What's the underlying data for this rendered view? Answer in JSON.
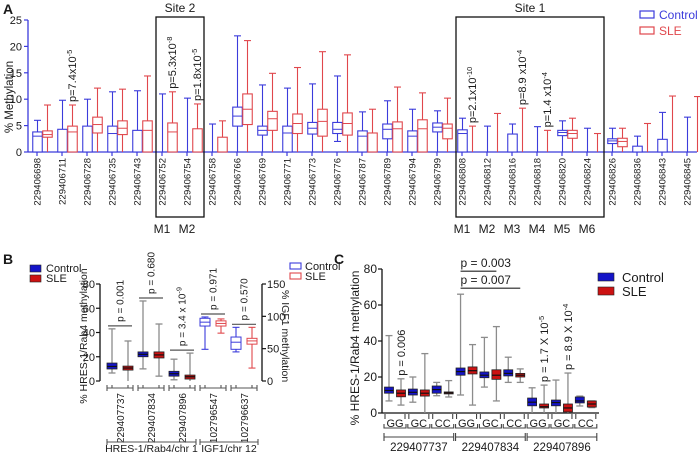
{
  "colors": {
    "control_outline": "#3b3bdb",
    "sle_outline": "#e0474c",
    "control_fill": "#1414c8",
    "sle_fill": "#cc1212",
    "whisker_gray": "#8c8c8c",
    "axis_a": "#3b3bdb",
    "text": "#1a1a1a"
  },
  "chart_data": [
    {
      "panel": "A",
      "type": "boxplot",
      "title": "",
      "xlabel": "",
      "ylabel": "% Methylation",
      "ylim": [
        0,
        25
      ],
      "yticks": [
        "0",
        "5",
        "10",
        "15",
        "20",
        "25"
      ],
      "ytick_values": [
        0,
        5,
        10,
        15,
        20,
        25
      ],
      "grid": false,
      "legend": "top-right",
      "box_format": "[min, q1, median, q3, max]",
      "categories": [
        "229406698",
        "229406711",
        "229406728",
        "229406735",
        "229406743",
        "229406752",
        "229406754",
        "229406758",
        "229406766",
        "229406769",
        "229406771",
        "229406773",
        "229406776",
        "229406787",
        "229406789",
        "229406794",
        "229406799",
        "229406808",
        "229406812",
        "229406816",
        "229406818",
        "229406820",
        "229406824",
        "229406826",
        "229406836",
        "229406843",
        "229406845"
      ],
      "series": [
        {
          "name": "Control",
          "style": "outline",
          "color_key": "control_outline",
          "boxes": [
            [
              0,
              0,
              3.0,
              3.8,
              6.0
            ],
            [
              0,
              0,
              0,
              4.3,
              9.8
            ],
            [
              0,
              0,
              0,
              4.9,
              10.0
            ],
            [
              0,
              0,
              3.5,
              4.9,
              11.4
            ],
            [
              0,
              0,
              0,
              4.1,
              11.6
            ],
            [
              0,
              0,
              0,
              0,
              11.0
            ],
            [
              0,
              0,
              0,
              0,
              10.2
            ],
            [
              0,
              0,
              0,
              0,
              5.3
            ],
            [
              0,
              4.9,
              6.8,
              8.5,
              22.0
            ],
            [
              0,
              3.2,
              4.1,
              4.9,
              12.7
            ],
            [
              0,
              0,
              3.6,
              4.9,
              12.1
            ],
            [
              0,
              3.4,
              4.5,
              5.6,
              12.9
            ],
            [
              2.0,
              3.5,
              4.3,
              5.6,
              14.4
            ],
            [
              0,
              0,
              3.0,
              4.0,
              7.6
            ],
            [
              0,
              2.5,
              4.3,
              5.3,
              9.7
            ],
            [
              0,
              0,
              3.0,
              4.0,
              8.1
            ],
            [
              0,
              3.8,
              4.7,
              5.5,
              7.8
            ],
            [
              0,
              0,
              3.5,
              4.2,
              6.4
            ],
            [
              0,
              0,
              0,
              0,
              4.9
            ],
            [
              0,
              0,
              0,
              3.4,
              5.3
            ],
            [
              0,
              0,
              0,
              0,
              4.8
            ],
            [
              0,
              3.1,
              3.7,
              4.1,
              5.9
            ],
            [
              0,
              0,
              0,
              0,
              4.5
            ],
            [
              0,
              1.6,
              2.1,
              2.5,
              4.5
            ],
            [
              0,
              0,
              0,
              1.1,
              3.0
            ],
            [
              0,
              0,
              0,
              2.4,
              7.5
            ],
            [
              0,
              0,
              0,
              0,
              6.6
            ]
          ]
        },
        {
          "name": "SLE",
          "style": "outline",
          "color_key": "sle_outline",
          "boxes": [
            [
              0,
              2.8,
              3.3,
              4.0,
              8.9
            ],
            [
              0,
              0,
              3.8,
              4.9,
              8.9
            ],
            [
              0,
              3.6,
              5.2,
              6.6,
              12.1
            ],
            [
              0,
              3.3,
              4.5,
              5.9,
              11.9
            ],
            [
              0,
              0,
              4.1,
              5.9,
              14.4
            ],
            [
              0,
              0,
              3.8,
              5.5,
              11.4
            ],
            [
              0,
              0,
              0,
              4.4,
              9.1
            ],
            [
              0,
              0,
              0,
              2.8,
              5.9
            ],
            [
              0,
              5.2,
              8.1,
              11.0,
              21.1
            ],
            [
              0,
              4.1,
              6.3,
              7.7,
              14.9
            ],
            [
              0,
              3.5,
              5.4,
              7.2,
              16.0
            ],
            [
              0,
              3.0,
              5.8,
              8.1,
              19.0
            ],
            [
              0,
              3.2,
              5.4,
              7.4,
              18.4
            ],
            [
              0,
              0,
              0,
              3.6,
              8.1
            ],
            [
              0,
              0,
              4.4,
              5.7,
              12.3
            ],
            [
              0,
              0,
              4.4,
              6.1,
              11.2
            ],
            [
              0,
              2.5,
              4.5,
              5.3,
              10.2
            ],
            [
              0,
              0,
              0,
              0,
              4.9
            ],
            [
              0,
              0,
              0,
              0,
              7.3
            ],
            [
              0,
              0,
              0,
              0,
              8.3
            ],
            [
              0,
              0,
              0,
              0,
              4.1
            ],
            [
              0,
              2.6,
              3.5,
              4.1,
              6.4
            ],
            [
              0,
              0,
              0,
              0,
              3.5
            ],
            [
              0,
              1.0,
              2.0,
              2.6,
              4.5
            ],
            [
              0,
              0,
              0,
              0,
              5.4
            ],
            [
              0,
              0,
              0,
              0,
              10.6
            ],
            [
              0,
              0,
              0,
              0,
              10.5
            ]
          ]
        }
      ],
      "regions": [
        {
          "label": "Site 2",
          "first": "229406752",
          "last": "229406754",
          "markers": [
            "M1",
            "M2"
          ]
        },
        {
          "label": "Site 1",
          "first": "229406808",
          "last": "229406824",
          "markers": [
            "M1",
            "M2",
            "M3",
            "M4",
            "M5",
            "M6"
          ]
        }
      ],
      "annotations": [
        {
          "category": "229406711",
          "text": "p=7.4x10",
          "exponent": "-5"
        },
        {
          "category": "229406752",
          "text": "p=5.3x10",
          "exponent": "-8"
        },
        {
          "category": "229406754",
          "text": "p=1.8x10",
          "exponent": "-5"
        },
        {
          "category": "229406808",
          "text": "p=2.1x10",
          "exponent": "-10"
        },
        {
          "category": "229406816",
          "text": "p=8.9 x10",
          "exponent": "-4"
        },
        {
          "category": "229406818",
          "text": "p=1.4 x10",
          "exponent": "-4"
        }
      ]
    },
    {
      "panel": "B",
      "type": "boxplot",
      "title": "",
      "xlabel": "",
      "ylabel": "% HRES-1/Rab4 methylation",
      "ylabel_right": "% IGF1 methylation",
      "ylim": [
        0,
        80
      ],
      "ylim_right": [
        0,
        150
      ],
      "yticks": [
        "0",
        "20",
        "40",
        "60",
        "80"
      ],
      "ytick_values": [
        0,
        20,
        40,
        60,
        80
      ],
      "yticks_right": [
        "0",
        "50",
        "100",
        "150"
      ],
      "ytick_values_right": [
        0,
        50,
        100,
        150
      ],
      "grid": false,
      "legend": "top-left (filled, HRES-1/Rab4) and top-right (outline, IGF1)",
      "box_format": "[min, q1, median, q3, max]",
      "categories": [
        "229407737",
        "229407834",
        "229407896",
        "102796547",
        "102796637"
      ],
      "category_axis": [
        "left",
        "left",
        "left",
        "right",
        "right"
      ],
      "groups": [
        {
          "label": "HRES-1/Rab4/chr 1",
          "categories": [
            0,
            1,
            2
          ]
        },
        {
          "label": "IGF1/chr 12",
          "categories": [
            3,
            4
          ]
        }
      ],
      "series": [
        {
          "name": "Control",
          "color_key_fill": "control_fill",
          "color_key_outline": "control_outline",
          "boxes": [
            [
              6.6,
              9.9,
              12.0,
              14.8,
              43
            ],
            [
              10,
              20,
              22,
              24,
              66
            ],
            [
              1,
              4,
              6,
              8,
              18
            ],
            [
              49,
              85,
              91,
              97,
              99
            ],
            [
              45,
              49,
              60,
              68,
              83
            ]
          ]
        },
        {
          "name": "SLE",
          "color_key_fill": "sle_fill",
          "color_key_outline": "sle_outline",
          "boxes": [
            [
              0,
              9.0,
              10.7,
              12.3,
              33
            ],
            [
              4,
              19,
              21.5,
              24,
              47
            ],
            [
              0,
              1.6,
              3.5,
              4.9,
              23
            ],
            [
              74,
              85,
              89,
              93,
              96
            ],
            [
              20,
              57,
              62,
              66,
              83
            ]
          ]
        }
      ],
      "annotations": [
        {
          "category": 0,
          "text": "p = 0.001",
          "exponent": ""
        },
        {
          "category": 1,
          "text": "p = 0.680",
          "exponent": ""
        },
        {
          "category": 2,
          "text": "p = 3.4 x 10",
          "exponent": "-9"
        },
        {
          "category": 3,
          "text": "p = 0.971",
          "exponent": ""
        },
        {
          "category": 4,
          "text": "p = 0.570",
          "exponent": ""
        }
      ]
    },
    {
      "panel": "C",
      "type": "boxplot",
      "title": "",
      "xlabel": "",
      "ylabel": "% HRES-1/Rab4 methylation",
      "ylim": [
        0,
        80
      ],
      "yticks": [
        "0",
        "20",
        "40",
        "60",
        "80"
      ],
      "ytick_values": [
        0,
        20,
        40,
        60,
        80
      ],
      "grid": false,
      "legend": "top-right",
      "box_format": "[min, q1, median, q3, max]",
      "groups": [
        {
          "label": "229407737",
          "genotypes": [
            "GG",
            "GC",
            "CC"
          ]
        },
        {
          "label": "229407834",
          "genotypes": [
            "GG",
            "GC",
            "CC"
          ]
        },
        {
          "label": "229407896",
          "genotypes": [
            "GG",
            "GC",
            "CC"
          ]
        }
      ],
      "series": [
        {
          "name": "Control",
          "color_key_fill": "control_fill",
          "boxes": [
            [
              [
                6.7,
                11,
                12.5,
                14.4,
                43
              ],
              [
                6,
                10,
                11.5,
                13.3,
                20
              ],
              [
                9.6,
                11,
                13,
                15,
                17
              ]
            ],
            [
              [
                10,
                21,
                23,
                25,
                66
              ],
              [
                14.4,
                19.6,
                21,
                22.8,
                42
              ],
              [
                17,
                20.6,
                22,
                24,
                31
              ]
            ],
            [
              [
                0,
                4,
                6,
                8.3,
                14
              ],
              [
                0,
                4,
                5.8,
                7.2,
                18.3
              ],
              [
                3.9,
                5.6,
                6.7,
                8.9,
                9.4
              ]
            ]
          ]
        },
        {
          "name": "SLE",
          "color_key_fill": "sle_fill",
          "boxes": [
            [
              [
                4.4,
                9,
                11,
                12.8,
                19
              ],
              [
                0,
                9.4,
                11,
                12.8,
                33
              ],
              [
                8.9,
                10.6,
                11.2,
                11.7,
                18
              ]
            ],
            [
              [
                4.4,
                21.7,
                23.5,
                25.6,
                38
              ],
              [
                6.7,
                18.7,
                21,
                24,
                48
              ],
              [
                17,
                20,
                21,
                22,
                24.5
              ]
            ],
            [
              [
                0,
                2.8,
                3.5,
                5,
                15.5
              ],
              [
                0,
                0.6,
                2.8,
                5,
                22.2
              ],
              [
                3,
                3.3,
                5,
                6.7,
                6.7
              ]
            ]
          ]
        }
      ],
      "annotations_vertical": [
        {
          "group": 0,
          "genotype": 0,
          "text": "p = 0.006",
          "exponent": ""
        },
        {
          "group": 2,
          "genotype": 0,
          "text": "p = 1.7 X 10",
          "exponent": "-5"
        },
        {
          "group": 2,
          "genotype": 1,
          "text": "p = 8.9 X 10",
          "exponent": "-4"
        }
      ],
      "annotations_bracket": [
        {
          "text": "p = 0.003",
          "from": [
            1,
            0
          ],
          "to": [
            1,
            1
          ]
        },
        {
          "text": "p = 0.007",
          "from": [
            1,
            0
          ],
          "to": [
            1,
            2
          ]
        }
      ]
    }
  ]
}
